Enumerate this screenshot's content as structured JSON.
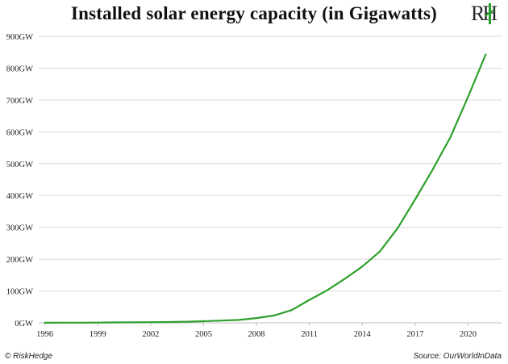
{
  "chart_data": {
    "type": "line",
    "title": "Installed solar energy capacity (in Gigawatts)",
    "xlabel": "",
    "ylabel": "",
    "xlim": [
      1996,
      2021
    ],
    "ylim": [
      0,
      900
    ],
    "x_ticks": [
      1996,
      1999,
      2002,
      2005,
      2008,
      2011,
      2014,
      2017,
      2020
    ],
    "y_ticks": [
      0,
      100,
      200,
      300,
      400,
      500,
      600,
      700,
      800,
      900
    ],
    "y_tick_labels": [
      "0GW",
      "100GW",
      "200GW",
      "300GW",
      "400GW",
      "500GW",
      "600GW",
      "700GW",
      "800GW",
      "900GW"
    ],
    "x_tick_labels": [
      "1996",
      "1999",
      "2002",
      "2005",
      "2008",
      "2011",
      "2014",
      "2017",
      "2020"
    ],
    "grid": "horizontal",
    "series": [
      {
        "color": "#2ea02c",
        "x": [
          1996,
          1997,
          1998,
          1999,
          2000,
          2001,
          2002,
          2003,
          2004,
          2005,
          2006,
          2007,
          2008,
          2009,
          2010,
          2011,
          2012,
          2013,
          2014,
          2015,
          2016,
          2017,
          2018,
          2019,
          2020,
          2021
        ],
        "y": [
          0.3,
          0.4,
          0.5,
          0.7,
          1.2,
          1.5,
          2.0,
          2.5,
          3.5,
          5,
          7,
          9,
          15,
          23,
          40,
          72,
          102,
          138,
          177,
          224,
          297,
          388,
          482,
          583,
          710,
          843
        ]
      }
    ]
  },
  "logo": {
    "text": "RH"
  },
  "footer": {
    "left": "© RiskHedge",
    "right": "Source: OurWorldInData"
  }
}
